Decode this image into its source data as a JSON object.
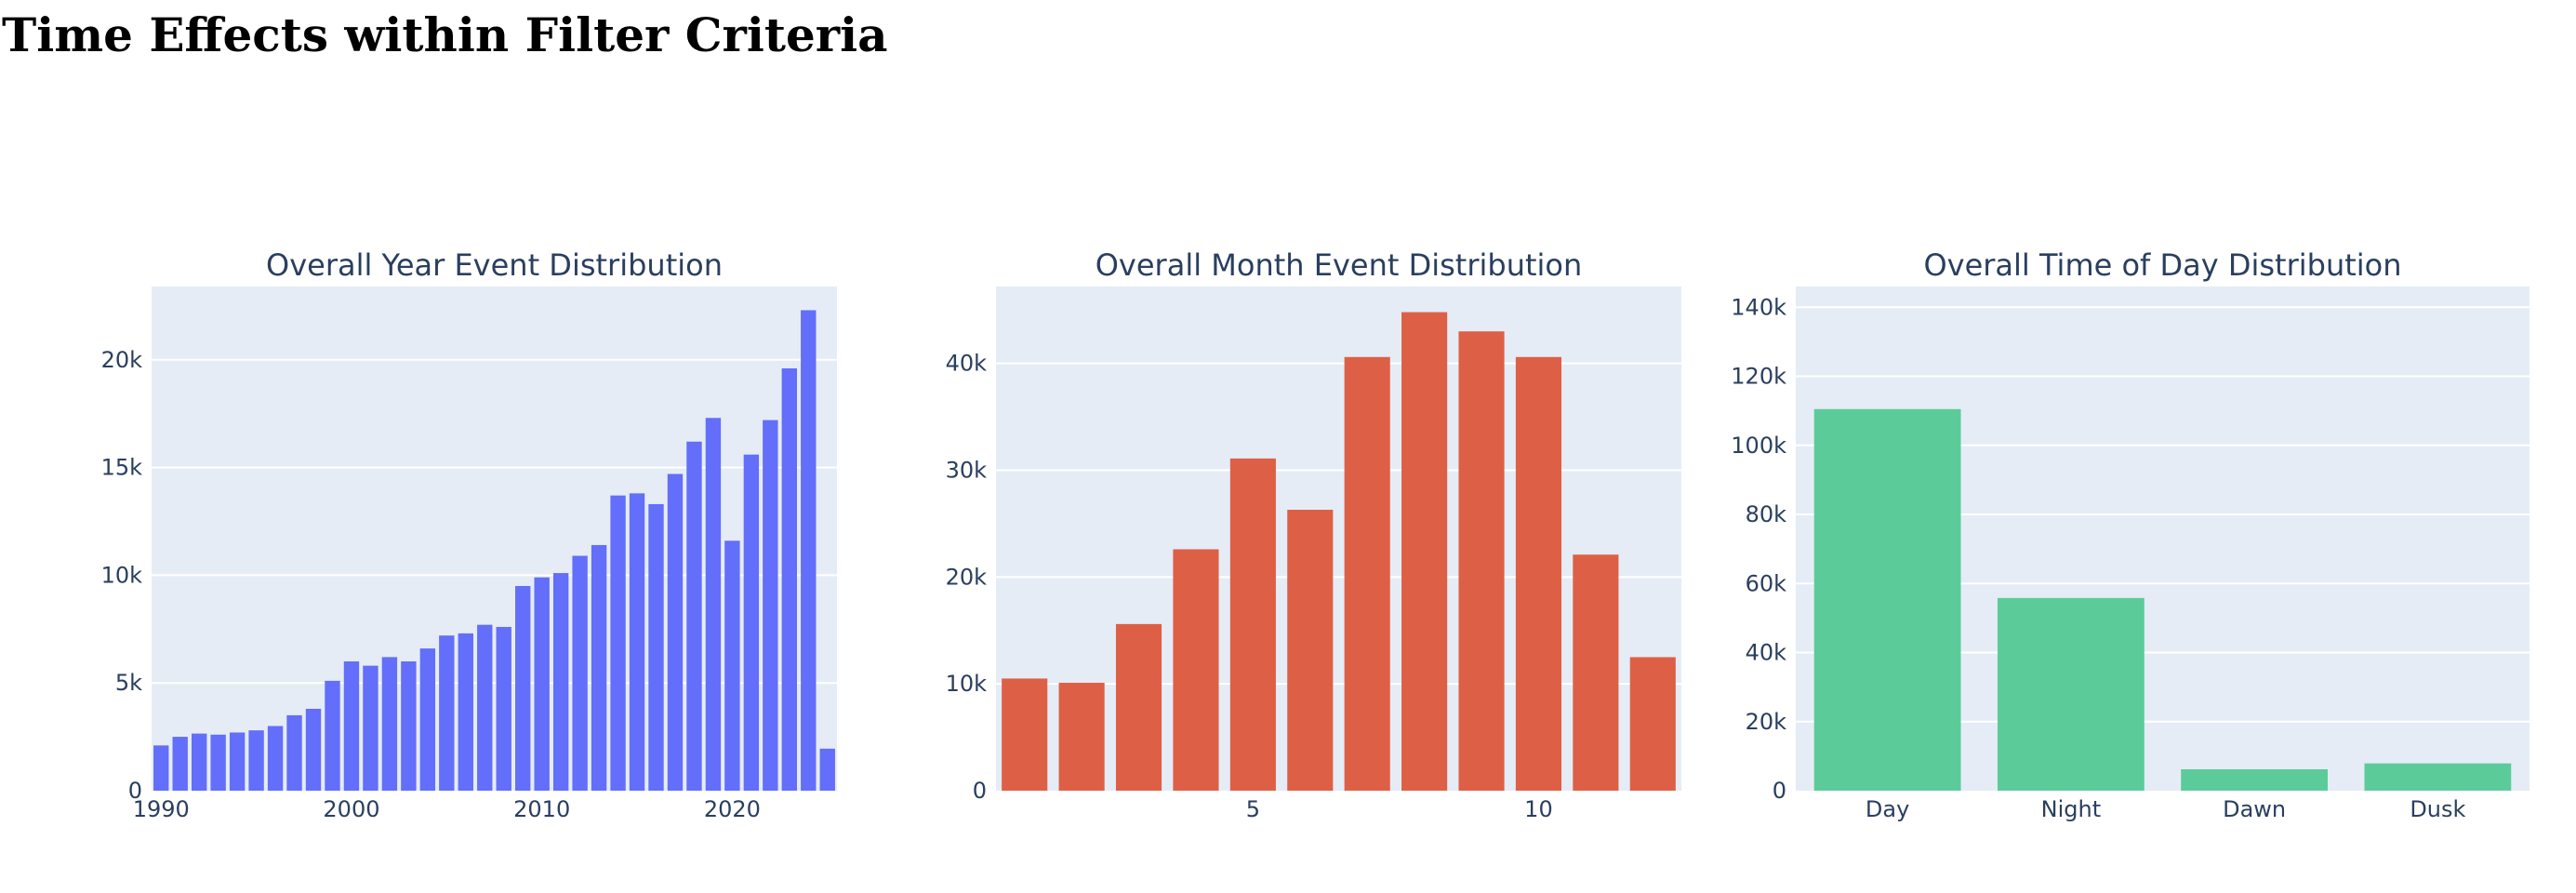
{
  "page": {
    "title": "Time Effects within Filter Criteria"
  },
  "colors": {
    "plot_bg": "#e5ecf6",
    "grid": "#ffffff",
    "text": "#2a3f5f"
  },
  "chart_data": [
    {
      "type": "bar",
      "title": "Overall Year Event Distribution",
      "color": "#636efa",
      "x": [
        1990,
        1991,
        1992,
        1993,
        1994,
        1995,
        1996,
        1997,
        1998,
        1999,
        2000,
        2001,
        2002,
        2003,
        2004,
        2005,
        2006,
        2007,
        2008,
        2009,
        2010,
        2011,
        2012,
        2013,
        2014,
        2015,
        2016,
        2017,
        2018,
        2019,
        2020,
        2021,
        2022,
        2023,
        2024,
        2025
      ],
      "values": [
        2100,
        2500,
        2650,
        2600,
        2700,
        2800,
        3000,
        3500,
        3800,
        5100,
        6000,
        5800,
        6200,
        6000,
        6600,
        7200,
        7300,
        7700,
        7600,
        9500,
        9900,
        10100,
        10900,
        11400,
        13700,
        13800,
        13300,
        14700,
        16200,
        17300,
        11600,
        15600,
        17200,
        19600,
        22300,
        1950
      ],
      "xlim": [
        1989.5,
        2025.5
      ],
      "ylim": [
        0,
        23400
      ],
      "xticks": [
        1990,
        2000,
        2010,
        2020
      ],
      "xtick_labels": [
        "1990",
        "2000",
        "2010",
        "2020"
      ],
      "yticks": [
        0,
        5000,
        10000,
        15000,
        20000
      ],
      "ytick_labels": [
        "0",
        "5k",
        "10k",
        "15k",
        "20k"
      ],
      "xlabel": "",
      "ylabel": "",
      "grid": true
    },
    {
      "type": "bar",
      "title": "Overall Month Event Distribution",
      "color": "#dd6046",
      "x": [
        1,
        2,
        3,
        4,
        5,
        6,
        7,
        8,
        9,
        10,
        11,
        12
      ],
      "values": [
        10500,
        10100,
        15600,
        22600,
        31100,
        26300,
        40600,
        44800,
        43000,
        40600,
        22100,
        12500
      ],
      "xlim": [
        0.5,
        12.5
      ],
      "ylim": [
        0,
        47200
      ],
      "xticks": [
        5,
        10
      ],
      "xtick_labels": [
        "5",
        "10"
      ],
      "yticks": [
        0,
        10000,
        20000,
        30000,
        40000
      ],
      "ytick_labels": [
        "0",
        "10k",
        "20k",
        "30k",
        "40k"
      ],
      "xlabel": "",
      "ylabel": "",
      "grid": true
    },
    {
      "type": "bar",
      "title": "Overall Time of Day Distribution",
      "color": "#5ccb9a",
      "categories": [
        "Day",
        "Night",
        "Dawn",
        "Dusk"
      ],
      "values": [
        110500,
        55800,
        6200,
        7900
      ],
      "ylim": [
        0,
        146000
      ],
      "yticks": [
        0,
        20000,
        40000,
        60000,
        80000,
        100000,
        120000,
        140000
      ],
      "ytick_labels": [
        "0",
        "20k",
        "40k",
        "60k",
        "80k",
        "100k",
        "120k",
        "140k"
      ],
      "xlabel": "",
      "ylabel": "",
      "grid": true
    }
  ]
}
